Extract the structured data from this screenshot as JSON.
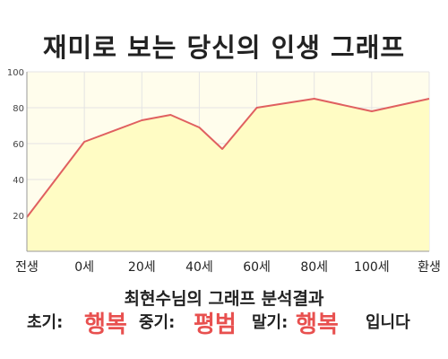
{
  "title": "재미로 보는 당신의 인생 그래프",
  "summary": {
    "heading": "최현수님의 그래프 분석결과",
    "early_label": "초기:",
    "early_value": "행복",
    "mid_label": "중기:",
    "mid_value": "평범",
    "late_label": "말기:",
    "late_value": "행복",
    "ending": "입니다"
  },
  "colors": {
    "line": "#e06060",
    "fill": "#fffcc4",
    "plot_bg": "#fffdec",
    "highlight": "#e8504f",
    "grid": "#e4e4e4"
  },
  "chart_data": {
    "type": "area",
    "title": "재미로 보는 당신의 인생 그래프",
    "xlabel": "",
    "ylabel": "",
    "x_tick_labels": [
      "전생",
      "0세",
      "20세",
      "40세",
      "60세",
      "80세",
      "100세",
      "환생"
    ],
    "x": [
      -20,
      0,
      20,
      30,
      40,
      48,
      60,
      80,
      100,
      120
    ],
    "y": [
      19,
      61,
      73,
      76,
      69,
      57,
      80,
      85,
      78,
      85
    ],
    "xlim": [
      -20,
      120
    ],
    "ylim": [
      0,
      100
    ],
    "y_ticks": [
      20,
      40,
      60,
      80,
      100
    ],
    "grid": true,
    "legend": "none"
  }
}
